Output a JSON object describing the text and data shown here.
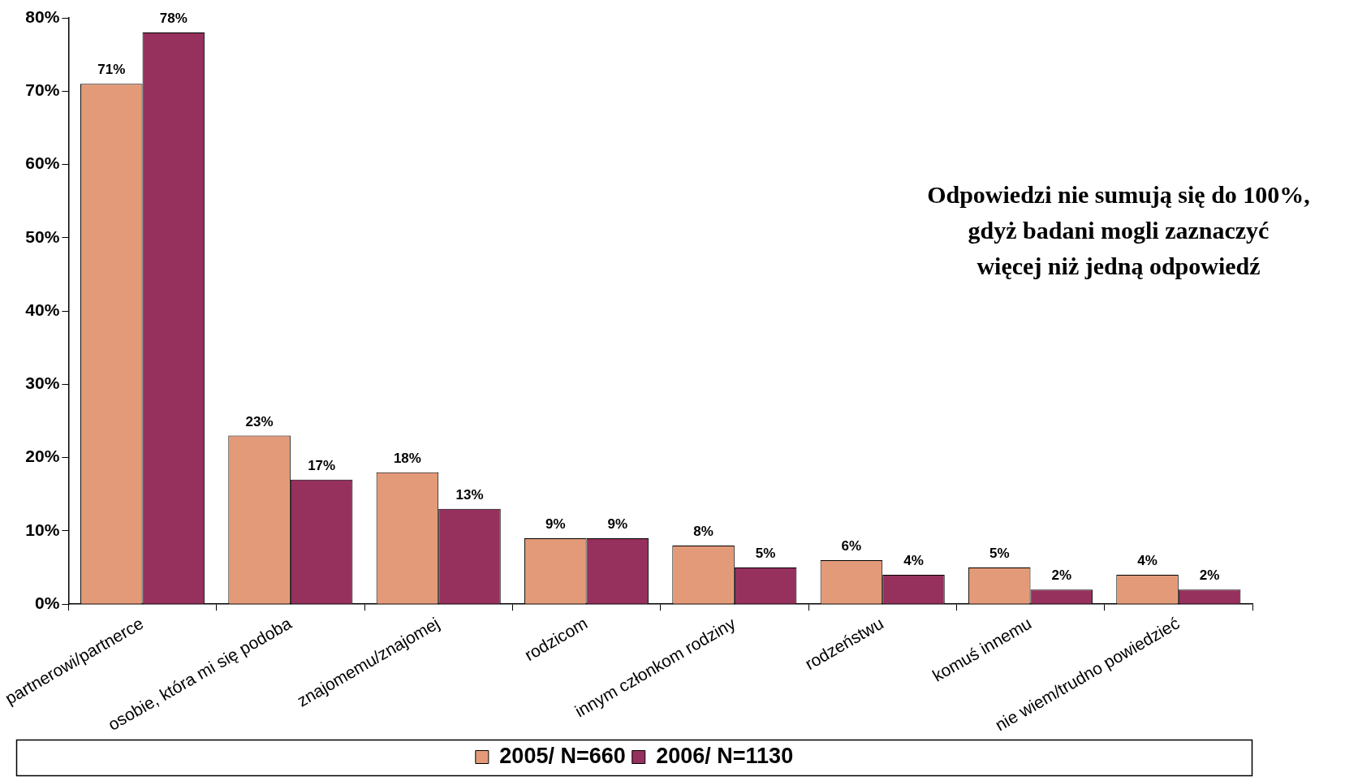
{
  "chart_data": {
    "type": "bar",
    "categories": [
      "partnerowi/partnerce",
      "osobie, która mi się podoba",
      "znajomemu/znajomej",
      "rodzicom",
      "innym członkom rodziny",
      "rodzeństwu",
      "komuś innemu",
      "nie wiem/trudno powiedzieć"
    ],
    "series": [
      {
        "name": "2005/ N=660",
        "color": "#e39a78",
        "values": [
          71,
          23,
          18,
          9,
          8,
          6,
          5,
          4
        ],
        "value_labels": [
          "71%",
          "23%",
          "18%",
          "9%",
          "8%",
          "6%",
          "5%",
          "4%"
        ]
      },
      {
        "name": "2006/ N=1130",
        "color": "#96305c",
        "values": [
          78,
          17,
          13,
          9,
          5,
          4,
          2,
          2
        ],
        "value_labels": [
          "78%",
          "17%",
          "13%",
          "9%",
          "5%",
          "4%",
          "2%",
          "2%"
        ]
      }
    ],
    "ylim": [
      0,
      80
    ],
    "yticks": [
      {
        "value": 0,
        "label": "0%"
      },
      {
        "value": 10,
        "label": "10%"
      },
      {
        "value": 20,
        "label": "20%"
      },
      {
        "value": 30,
        "label": "30%"
      },
      {
        "value": 40,
        "label": "40%"
      },
      {
        "value": 50,
        "label": "50%"
      },
      {
        "value": 60,
        "label": "60%"
      },
      {
        "value": 70,
        "label": "70%"
      },
      {
        "value": 80,
        "label": "80%"
      }
    ],
    "grid": false,
    "legend": "bottom",
    "annotations": [
      "Odpowiedzi nie sumują się do 100%,\ngdyż badani mogli zaznaczyć\nwięcej niż jedną odpowiedź"
    ]
  }
}
